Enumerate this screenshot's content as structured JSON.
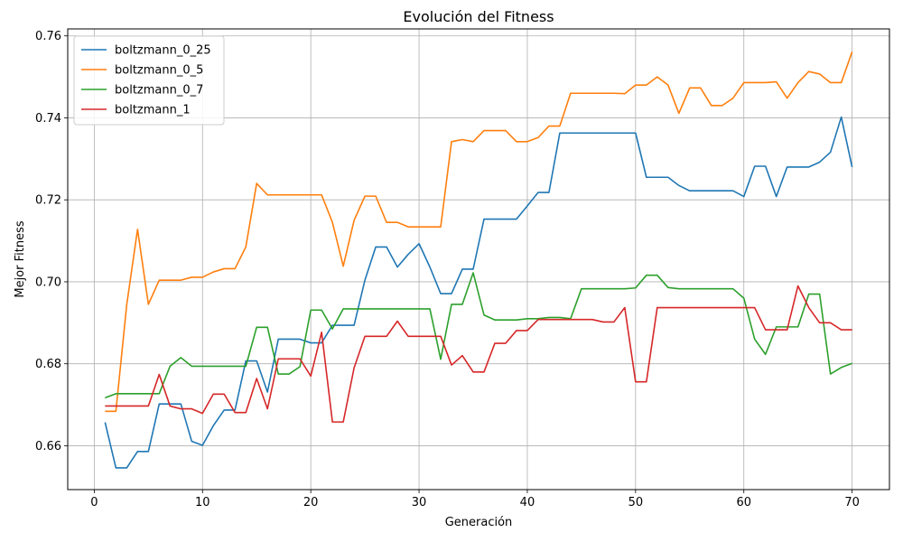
{
  "chart_data": {
    "type": "line",
    "title": "Evolución del Fitness",
    "xlabel": "Generación",
    "ylabel": "Mejor Fitness",
    "xlim": [
      -2.45,
      73.45
    ],
    "ylim": [
      0.6493,
      0.7617
    ],
    "xticks": [
      0,
      10,
      20,
      30,
      40,
      50,
      60,
      70
    ],
    "yticks": [
      0.66,
      0.68,
      0.7,
      0.72,
      0.74,
      0.76
    ],
    "ytick_labels": [
      "0.66",
      "0.68",
      "0.70",
      "0.72",
      "0.74",
      "0.76"
    ],
    "grid": true,
    "legend_position": "top-left",
    "x": [
      1,
      2,
      3,
      4,
      5,
      6,
      7,
      8,
      9,
      10,
      11,
      12,
      13,
      14,
      15,
      16,
      17,
      18,
      19,
      20,
      21,
      22,
      23,
      24,
      25,
      26,
      27,
      28,
      29,
      30,
      31,
      32,
      33,
      34,
      35,
      36,
      37,
      38,
      39,
      40,
      41,
      42,
      43,
      44,
      45,
      46,
      47,
      48,
      49,
      50,
      51,
      52,
      53,
      54,
      55,
      56,
      57,
      58,
      59,
      60,
      61,
      62,
      63,
      64,
      65,
      66,
      67,
      68,
      69,
      70
    ],
    "series": [
      {
        "name": "boltzmann_0_25",
        "color": "#1f77b4",
        "values": [
          0.6657,
          0.6546,
          0.6546,
          0.6586,
          0.6586,
          0.6702,
          0.6702,
          0.6702,
          0.6611,
          0.6601,
          0.6649,
          0.6687,
          0.6687,
          0.6807,
          0.6807,
          0.6731,
          0.686,
          0.686,
          0.686,
          0.6851,
          0.6851,
          0.6894,
          0.6894,
          0.6894,
          0.7004,
          0.7085,
          0.7085,
          0.7036,
          0.7067,
          0.7093,
          0.7036,
          0.6971,
          0.6971,
          0.7031,
          0.7031,
          0.7153,
          0.7153,
          0.7153,
          0.7153,
          0.7185,
          0.7218,
          0.7218,
          0.7363,
          0.7363,
          0.7363,
          0.7363,
          0.7363,
          0.7363,
          0.7363,
          0.7363,
          0.7255,
          0.7255,
          0.7255,
          0.7235,
          0.7222,
          0.7222,
          0.7222,
          0.7222,
          0.7222,
          0.7208,
          0.7282,
          0.7282,
          0.7208,
          0.728,
          0.728,
          0.728,
          0.7292,
          0.7316,
          0.7402,
          0.728
        ]
      },
      {
        "name": "boltzmann_0_5",
        "color": "#ff7f0e",
        "values": [
          0.6684,
          0.6684,
          0.6944,
          0.7128,
          0.6945,
          0.7004,
          0.7004,
          0.7004,
          0.7011,
          0.7011,
          0.7024,
          0.7032,
          0.7032,
          0.7085,
          0.724,
          0.7212,
          0.7212,
          0.7212,
          0.7212,
          0.7212,
          0.7212,
          0.7145,
          0.7038,
          0.715,
          0.7209,
          0.7209,
          0.7145,
          0.7145,
          0.7134,
          0.7134,
          0.7134,
          0.7134,
          0.7342,
          0.7347,
          0.7342,
          0.7369,
          0.7369,
          0.7369,
          0.7342,
          0.7342,
          0.7352,
          0.738,
          0.738,
          0.746,
          0.746,
          0.746,
          0.746,
          0.746,
          0.7459,
          0.748,
          0.748,
          0.75,
          0.748,
          0.7411,
          0.7473,
          0.7473,
          0.743,
          0.743,
          0.7448,
          0.7486,
          0.7486,
          0.7486,
          0.7488,
          0.7448,
          0.7486,
          0.7513,
          0.7507,
          0.7486,
          0.7486,
          0.7561
        ]
      },
      {
        "name": "boltzmann_0_7",
        "color": "#2ca02c",
        "values": [
          0.6717,
          0.6727,
          0.6727,
          0.6727,
          0.6727,
          0.6727,
          0.6794,
          0.6815,
          0.6794,
          0.6794,
          0.6794,
          0.6794,
          0.6794,
          0.6794,
          0.6889,
          0.6889,
          0.6775,
          0.6775,
          0.6793,
          0.6931,
          0.6931,
          0.6885,
          0.6934,
          0.6934,
          0.6934,
          0.6934,
          0.6934,
          0.6934,
          0.6934,
          0.6934,
          0.6934,
          0.6811,
          0.6945,
          0.6945,
          0.7022,
          0.6919,
          0.6907,
          0.6907,
          0.6907,
          0.691,
          0.691,
          0.6913,
          0.6913,
          0.691,
          0.6983,
          0.6983,
          0.6983,
          0.6983,
          0.6983,
          0.6985,
          0.7016,
          0.7016,
          0.6986,
          0.6983,
          0.6983,
          0.6983,
          0.6983,
          0.6983,
          0.6983,
          0.696,
          0.686,
          0.6823,
          0.689,
          0.689,
          0.689,
          0.697,
          0.697,
          0.6775,
          0.6791,
          0.6801
        ]
      },
      {
        "name": "boltzmann_1",
        "color": "#d62728",
        "values": [
          0.6697,
          0.6697,
          0.6697,
          0.6697,
          0.6697,
          0.6774,
          0.6697,
          0.669,
          0.669,
          0.6679,
          0.6726,
          0.6726,
          0.6681,
          0.6681,
          0.6764,
          0.669,
          0.6812,
          0.6812,
          0.6812,
          0.677,
          0.6877,
          0.6658,
          0.6658,
          0.679,
          0.6867,
          0.6867,
          0.6867,
          0.6904,
          0.6867,
          0.6867,
          0.6867,
          0.6867,
          0.6797,
          0.682,
          0.678,
          0.678,
          0.685,
          0.685,
          0.6881,
          0.6881,
          0.6908,
          0.6908,
          0.6908,
          0.6908,
          0.6908,
          0.6908,
          0.6902,
          0.6902,
          0.6937,
          0.6756,
          0.6756,
          0.6937,
          0.6937,
          0.6937,
          0.6937,
          0.6937,
          0.6937,
          0.6937,
          0.6937,
          0.6937,
          0.6937,
          0.6883,
          0.6883,
          0.6883,
          0.699,
          0.6937,
          0.69,
          0.69,
          0.6883,
          0.6883
        ]
      }
    ]
  }
}
